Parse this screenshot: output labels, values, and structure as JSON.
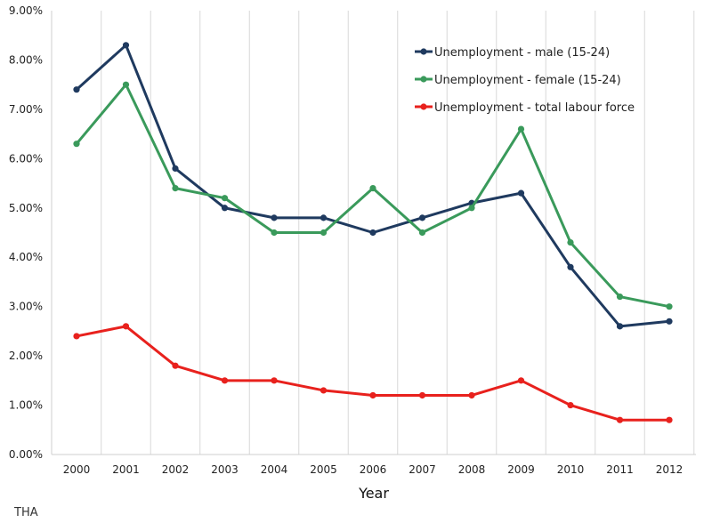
{
  "chart_data": {
    "type": "line",
    "title": "",
    "xlabel": "Year",
    "ylabel": "",
    "x": [
      "2000",
      "2001",
      "2002",
      "2003",
      "2004",
      "2005",
      "2006",
      "2007",
      "2008",
      "2009",
      "2010",
      "2011",
      "2012"
    ],
    "ylim": [
      0,
      9
    ],
    "yticks": [
      "0.00%",
      "1.00%",
      "2.00%",
      "3.00%",
      "4.00%",
      "5.00%",
      "6.00%",
      "7.00%",
      "8.00%",
      "9.00%"
    ],
    "grid": "vertical",
    "legend_position": "top-right",
    "series": [
      {
        "name": "Unemployment - male (15-24)",
        "color": "#1f3a5f",
        "values": [
          7.4,
          8.3,
          5.8,
          5.0,
          4.8,
          4.8,
          4.5,
          4.8,
          5.1,
          5.3,
          3.8,
          2.6,
          2.7
        ]
      },
      {
        "name": "Unemployment - female (15-24)",
        "color": "#3a9a5b",
        "values": [
          6.3,
          7.5,
          5.4,
          5.2,
          4.5,
          4.5,
          5.4,
          4.5,
          5.0,
          6.6,
          4.3,
          3.2,
          3.0
        ]
      },
      {
        "name": "Unemployment - total labour force",
        "color": "#e8211d",
        "values": [
          2.4,
          2.6,
          1.8,
          1.5,
          1.5,
          1.3,
          1.2,
          1.2,
          1.2,
          1.5,
          1.0,
          0.7,
          0.7
        ]
      }
    ]
  },
  "footer": {
    "country_code": "THA"
  }
}
